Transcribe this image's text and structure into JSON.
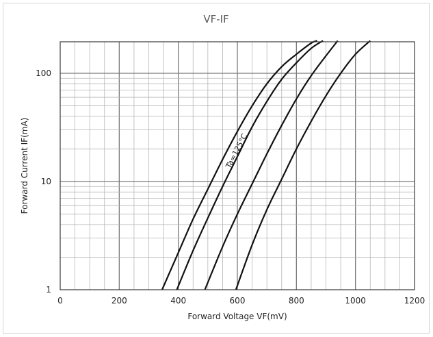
{
  "chart_data": {
    "type": "line",
    "title": "VF-IF",
    "xlabel": "Forward Voltage  VF(mV)",
    "ylabel": "Forward Current  IF(mA)",
    "xlim": [
      0,
      1200
    ],
    "ylim": [
      1,
      200
    ],
    "y_scale": "log",
    "x_ticks": [
      "0",
      "200",
      "400",
      "600",
      "800",
      "1000",
      "1200"
    ],
    "y_ticks": [
      "1",
      "10",
      "100"
    ],
    "grid": true,
    "annotation": "Ta=125°C",
    "series": [
      {
        "x": [
          345,
          400,
          450,
          500,
          550,
          600,
          650,
          700,
          750,
          800,
          850,
          870
        ],
        "y": [
          1,
          2.2,
          4.5,
          8.5,
          16,
          29,
          50,
          80,
          115,
          150,
          190,
          200
        ]
      },
      {
        "x": [
          395,
          450,
          500,
          550,
          600,
          650,
          700,
          750,
          800,
          850,
          890
        ],
        "y": [
          1,
          2.3,
          4.6,
          9,
          17,
          32,
          55,
          88,
          125,
          170,
          200
        ]
      },
      {
        "x": [
          490,
          550,
          600,
          650,
          700,
          750,
          800,
          850,
          900,
          940
        ],
        "y": [
          1,
          2.5,
          5,
          9.5,
          18,
          33,
          58,
          95,
          145,
          200
        ]
      },
      {
        "x": [
          595,
          650,
          700,
          750,
          800,
          850,
          900,
          950,
          1000,
          1050
        ],
        "y": [
          1,
          2.6,
          5.5,
          10.5,
          20,
          36,
          62,
          100,
          150,
          200
        ]
      }
    ]
  }
}
